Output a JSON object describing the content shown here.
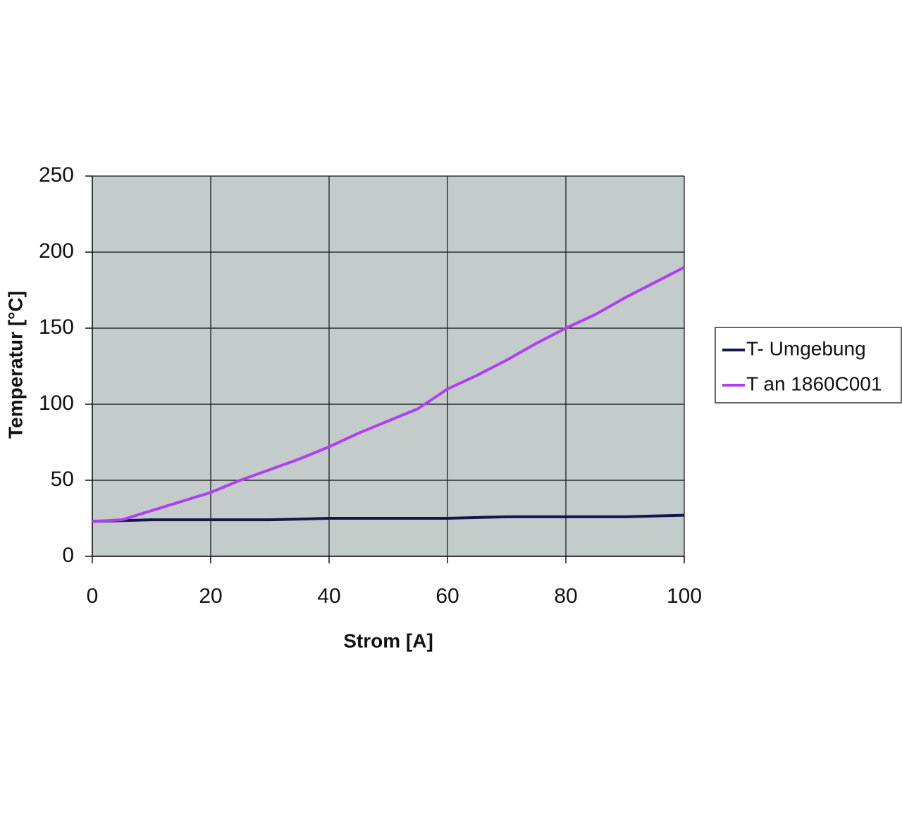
{
  "chart_data": {
    "type": "line",
    "x_label": "Strom [A]",
    "y_label": "Temperatur [°C]",
    "x": [
      0,
      5,
      10,
      15,
      20,
      25,
      30,
      35,
      40,
      45,
      50,
      55,
      60,
      65,
      70,
      75,
      80,
      85,
      90,
      95,
      100
    ],
    "series": [
      {
        "name": "T- Umgebung",
        "color": "#16164a",
        "values": [
          23,
          23.5,
          24,
          24,
          24,
          24,
          24,
          24.5,
          25,
          25,
          25,
          25,
          25,
          25.5,
          26,
          26,
          26,
          26,
          26,
          26.5,
          27
        ]
      },
      {
        "name": "T an 1860C001",
        "color": "#b040f0",
        "values": [
          23,
          24,
          30,
          36,
          42,
          50,
          57,
          64,
          72,
          81,
          89,
          97,
          110,
          119,
          129,
          140,
          150,
          159,
          170,
          180,
          190
        ]
      }
    ],
    "xlim": [
      0,
      100
    ],
    "xticks": [
      0,
      20,
      40,
      60,
      80,
      100
    ],
    "ylim": [
      0,
      250
    ],
    "yticks": [
      0,
      50,
      100,
      150,
      200,
      250
    ],
    "grid": true,
    "legend": "right",
    "plot_background": "#c3cbcb"
  }
}
